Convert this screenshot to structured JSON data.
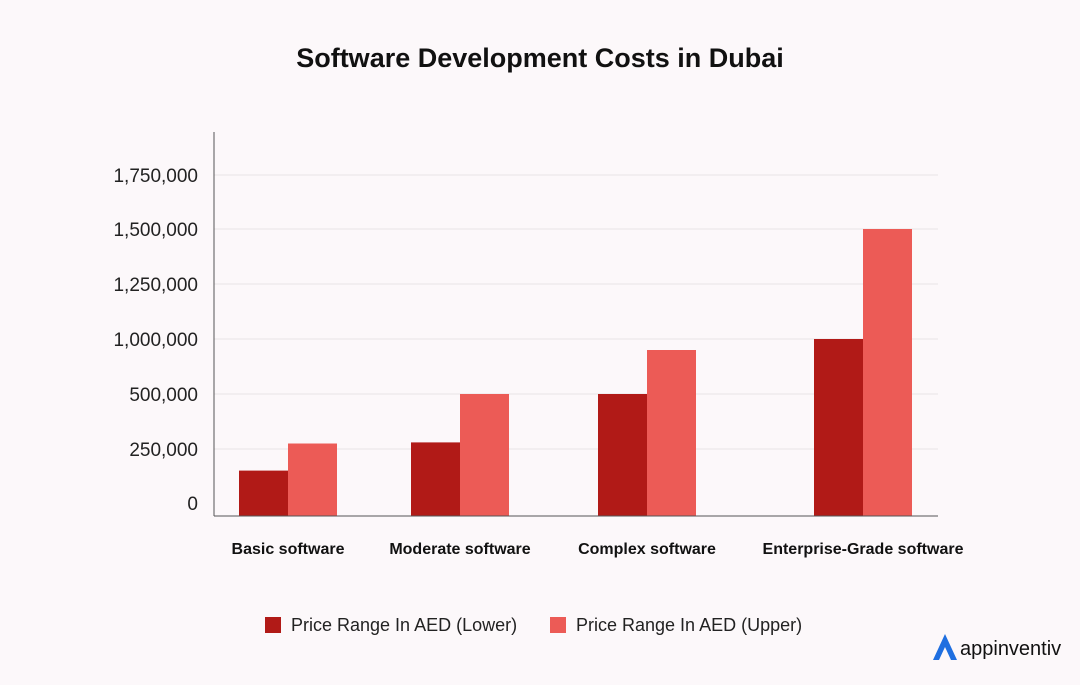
{
  "chart_data": {
    "type": "bar",
    "title": "Software Development Costs in Dubai",
    "categories": [
      "Basic software",
      "Moderate software",
      "Complex software",
      "Enterprise-Grade software"
    ],
    "series": [
      {
        "name": "Price Range In AED (Lower)",
        "color": "#b11a17",
        "values": [
          150000,
          280000,
          500000,
          1000000
        ]
      },
      {
        "name": "Price Range In AED (Upper)",
        "color": "#ec5b56",
        "values": [
          275000,
          500000,
          900000,
          1500000
        ]
      }
    ],
    "yticks": [
      {
        "label": "0",
        "value": 0
      },
      {
        "label": "250,000",
        "value": 250000
      },
      {
        "label": "500,000",
        "value": 500000
      },
      {
        "label": "1,000,000",
        "value": 1000000
      },
      {
        "label": "1,250,000",
        "value": 1250000
      },
      {
        "label": "1,500,000",
        "value": 1500000
      },
      {
        "label": "1,750,000",
        "value": 1750000
      }
    ],
    "xlabel": "",
    "ylabel": "",
    "grid": true,
    "legend": "bottom-center"
  },
  "branding": {
    "logo_text": "appinventiv",
    "logo_color": "#1f6fe0"
  }
}
